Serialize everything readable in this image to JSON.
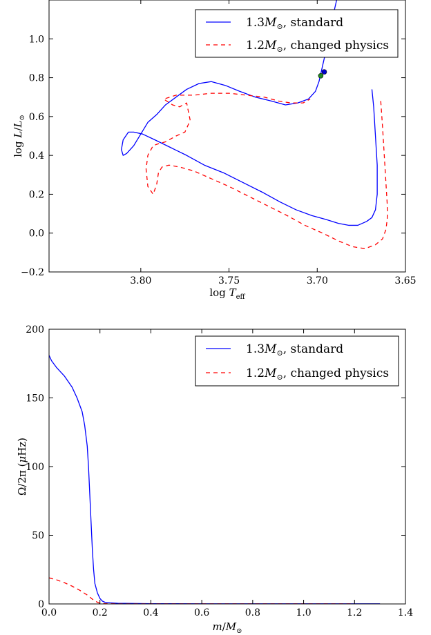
{
  "chart_data": [
    {
      "type": "line",
      "xlabel": "log T_eff",
      "ylabel": "log L/L_⊙",
      "xlim": [
        3.852,
        3.65
      ],
      "ylim": [
        -0.2,
        1.2
      ],
      "x_reversed": true,
      "xticks": [
        3.8,
        3.75,
        3.7,
        3.65
      ],
      "xtick_labels": [
        "3.80",
        "3.75",
        "3.70",
        "3.65"
      ],
      "yticks": [
        -0.2,
        0.0,
        0.2,
        0.4,
        0.6,
        0.8,
        1.0
      ],
      "ytick_labels": [
        "−0.2",
        "0.0",
        "0.2",
        "0.4",
        "0.6",
        "0.8",
        "1.0"
      ],
      "legend_position": "top-right",
      "grid": false,
      "series": [
        {
          "name": "1.3M_⊙, standard",
          "color": "#0000ff",
          "style": "solid",
          "x": [
            3.669,
            3.668,
            3.667,
            3.666,
            3.666,
            3.667,
            3.669,
            3.672,
            3.677,
            3.682,
            3.688,
            3.695,
            3.703,
            3.712,
            3.721,
            3.731,
            3.742,
            3.753,
            3.764,
            3.774,
            3.783,
            3.792,
            3.799,
            3.804,
            3.807,
            3.81,
            3.811,
            3.81,
            3.808,
            3.804,
            3.8,
            3.796,
            3.791,
            3.786,
            3.78,
            3.774,
            3.767,
            3.76,
            3.752,
            3.744,
            3.735,
            3.726,
            3.718,
            3.711,
            3.705,
            3.701,
            3.699,
            3.698,
            3.697,
            3.696,
            3.694,
            3.693,
            3.691,
            3.689
          ],
          "y": [
            0.74,
            0.65,
            0.5,
            0.35,
            0.2,
            0.12,
            0.08,
            0.06,
            0.04,
            0.04,
            0.05,
            0.07,
            0.09,
            0.12,
            0.16,
            0.21,
            0.26,
            0.31,
            0.35,
            0.4,
            0.44,
            0.48,
            0.51,
            0.52,
            0.52,
            0.48,
            0.43,
            0.4,
            0.41,
            0.45,
            0.51,
            0.57,
            0.61,
            0.66,
            0.7,
            0.74,
            0.77,
            0.78,
            0.76,
            0.73,
            0.7,
            0.68,
            0.66,
            0.67,
            0.69,
            0.73,
            0.78,
            0.82,
            0.86,
            0.9,
            0.96,
            1.04,
            1.12,
            1.2
          ]
        },
        {
          "name": "1.2M_⊙, changed physics",
          "color": "#ff0000",
          "style": "dashed",
          "x": [
            3.664,
            3.663,
            3.662,
            3.661,
            3.66,
            3.661,
            3.663,
            3.667,
            3.673,
            3.68,
            3.688,
            3.697,
            3.707,
            3.717,
            3.728,
            3.739,
            3.75,
            3.76,
            3.77,
            3.778,
            3.784,
            3.788,
            3.79,
            3.791,
            3.793,
            3.796,
            3.797,
            3.796,
            3.793,
            3.79,
            3.786,
            3.78,
            3.775,
            3.772,
            3.774,
            3.778,
            3.782,
            3.787,
            3.78,
            3.77,
            3.76,
            3.75,
            3.74,
            3.73,
            3.722,
            3.715,
            3.708,
            3.704
          ],
          "y": [
            0.68,
            0.55,
            0.4,
            0.25,
            0.1,
            0.02,
            -0.03,
            -0.06,
            -0.08,
            -0.07,
            -0.04,
            0.0,
            0.04,
            0.09,
            0.14,
            0.19,
            0.24,
            0.28,
            0.32,
            0.34,
            0.35,
            0.34,
            0.31,
            0.25,
            0.2,
            0.24,
            0.33,
            0.4,
            0.45,
            0.46,
            0.47,
            0.5,
            0.52,
            0.58,
            0.67,
            0.65,
            0.66,
            0.69,
            0.71,
            0.71,
            0.72,
            0.72,
            0.71,
            0.7,
            0.68,
            0.67,
            0.67,
            0.69
          ]
        }
      ],
      "markers": [
        {
          "x": 3.696,
          "y": 0.83,
          "color": "#0000cc"
        },
        {
          "x": 3.698,
          "y": 0.81,
          "color": "#228b22"
        }
      ]
    },
    {
      "type": "line",
      "xlabel": "m/M_⊙",
      "ylabel": "Ω/2π (μHz)",
      "xlim": [
        0.0,
        1.4
      ],
      "ylim": [
        0,
        200
      ],
      "xticks": [
        0.0,
        0.2,
        0.4,
        0.6,
        0.8,
        1.0,
        1.2,
        1.4
      ],
      "xtick_labels": [
        "0.0",
        "0.2",
        "0.4",
        "0.6",
        "0.8",
        "1.0",
        "1.2",
        "1.4"
      ],
      "yticks": [
        0,
        50,
        100,
        150,
        200
      ],
      "ytick_labels": [
        "0",
        "50",
        "100",
        "150",
        "200"
      ],
      "legend_position": "top-right",
      "grid": false,
      "series": [
        {
          "name": "1.3M_⊙, standard",
          "color": "#0000ff",
          "style": "solid",
          "x": [
            0.0,
            0.01,
            0.03,
            0.06,
            0.09,
            0.11,
            0.13,
            0.14,
            0.15,
            0.155,
            0.16,
            0.165,
            0.17,
            0.175,
            0.18,
            0.19,
            0.2,
            0.21,
            0.22,
            0.24,
            0.27,
            0.3,
            0.4,
            0.6,
            0.8,
            1.0,
            1.2,
            1.3
          ],
          "y": [
            181,
            177,
            172,
            166,
            158,
            150,
            140,
            130,
            115,
            100,
            80,
            60,
            40,
            25,
            15,
            8,
            4,
            2,
            1.2,
            0.8,
            0.5,
            0.4,
            0.2,
            0.1,
            0.1,
            0.1,
            0.1,
            0.1
          ]
        },
        {
          "name": "1.2M_⊙, changed physics",
          "color": "#ff0000",
          "style": "dashed",
          "x": [
            0.0,
            0.03,
            0.06,
            0.09,
            0.12,
            0.15,
            0.17,
            0.19,
            0.2,
            0.22,
            0.25,
            0.3,
            0.5,
            0.8,
            1.0,
            1.2
          ],
          "y": [
            19,
            17.5,
            15.5,
            13,
            10,
            6.5,
            3.5,
            1.2,
            0.5,
            0.2,
            0.1,
            0.05,
            0.05,
            0.05,
            0.05,
            0.05
          ]
        }
      ]
    }
  ]
}
